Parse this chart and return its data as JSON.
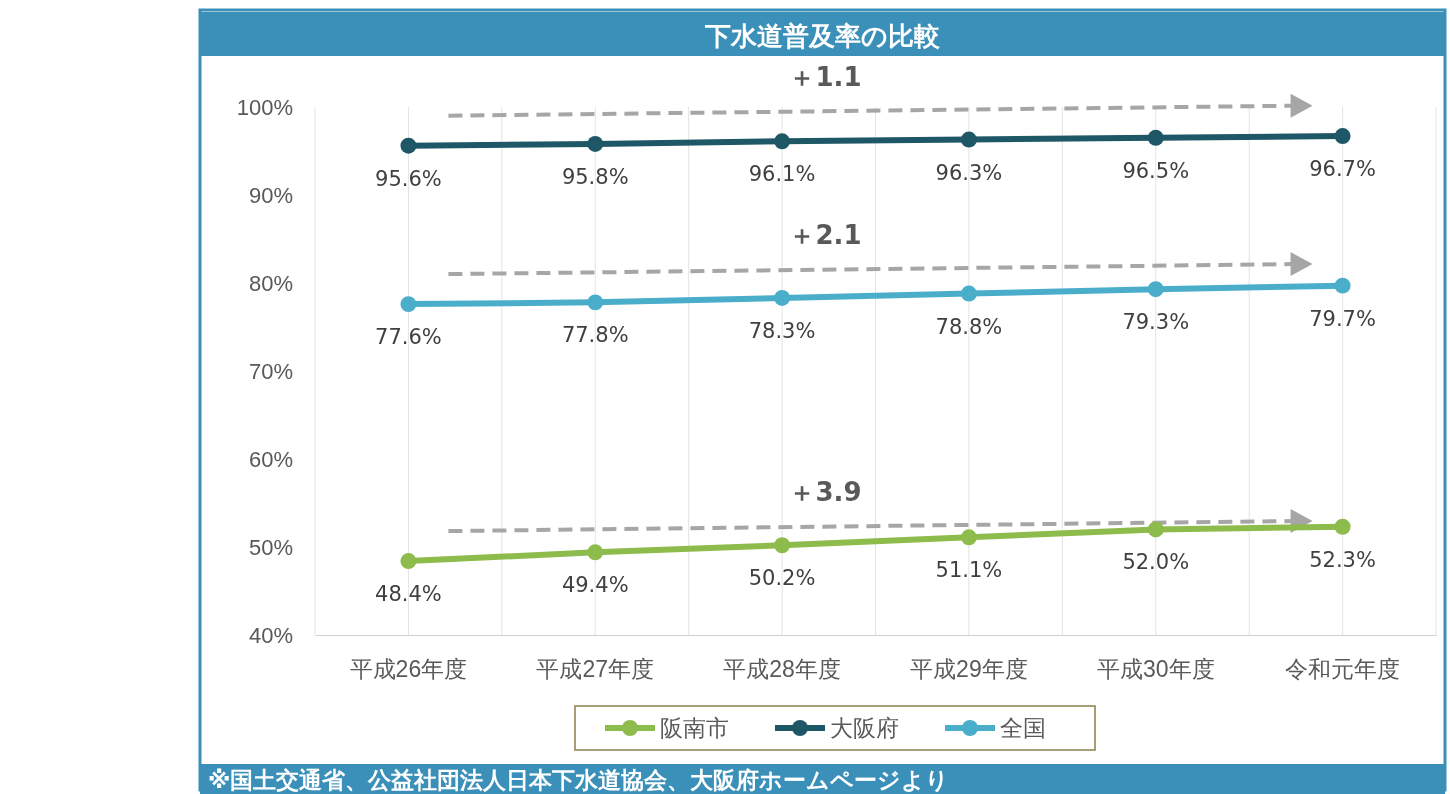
{
  "chart_data": {
    "type": "line",
    "title": "下水道普及率の比較",
    "categories": [
      "平成26年度",
      "平成27年度",
      "平成28年度",
      "平成29年度",
      "平成30年度",
      "令和元年度"
    ],
    "series": [
      {
        "name": "阪南市",
        "color": "#8dbb4c",
        "values": [
          48.4,
          49.4,
          50.2,
          51.1,
          52.0,
          52.3
        ],
        "value_labels": [
          "48.4%",
          "49.4%",
          "50.2%",
          "51.1%",
          "52.0%",
          "52.3%"
        ]
      },
      {
        "name": "大阪府",
        "color": "#1e5766",
        "values": [
          95.6,
          95.8,
          96.1,
          96.3,
          96.5,
          96.7
        ],
        "value_labels": [
          "95.6%",
          "95.8%",
          "96.1%",
          "96.3%",
          "96.5%",
          "96.7%"
        ]
      },
      {
        "name": "全国",
        "color": "#4aaecb",
        "values": [
          77.6,
          77.8,
          78.3,
          78.8,
          79.3,
          79.7
        ],
        "value_labels": [
          "77.6%",
          "77.8%",
          "78.3%",
          "78.8%",
          "79.3%",
          "79.7%"
        ]
      }
    ],
    "ylim": [
      40,
      100
    ],
    "yticks": [
      {
        "value": 40,
        "label": "40%"
      },
      {
        "value": 50,
        "label": "50%"
      },
      {
        "value": 60,
        "label": "60%"
      },
      {
        "value": 70,
        "label": "70%"
      },
      {
        "value": 80,
        "label": "80%"
      },
      {
        "value": 90,
        "label": "90%"
      },
      {
        "value": 100,
        "label": "100%"
      }
    ],
    "grid": "x",
    "legend": "bottom",
    "marker": "circle",
    "line_style": "solid",
    "annotations": [
      "＋1.1",
      "＋2.1",
      "＋3.9",
      "※国土交通省、公益社団法人日本下水道協会、大阪府ホームページより"
    ]
  }
}
